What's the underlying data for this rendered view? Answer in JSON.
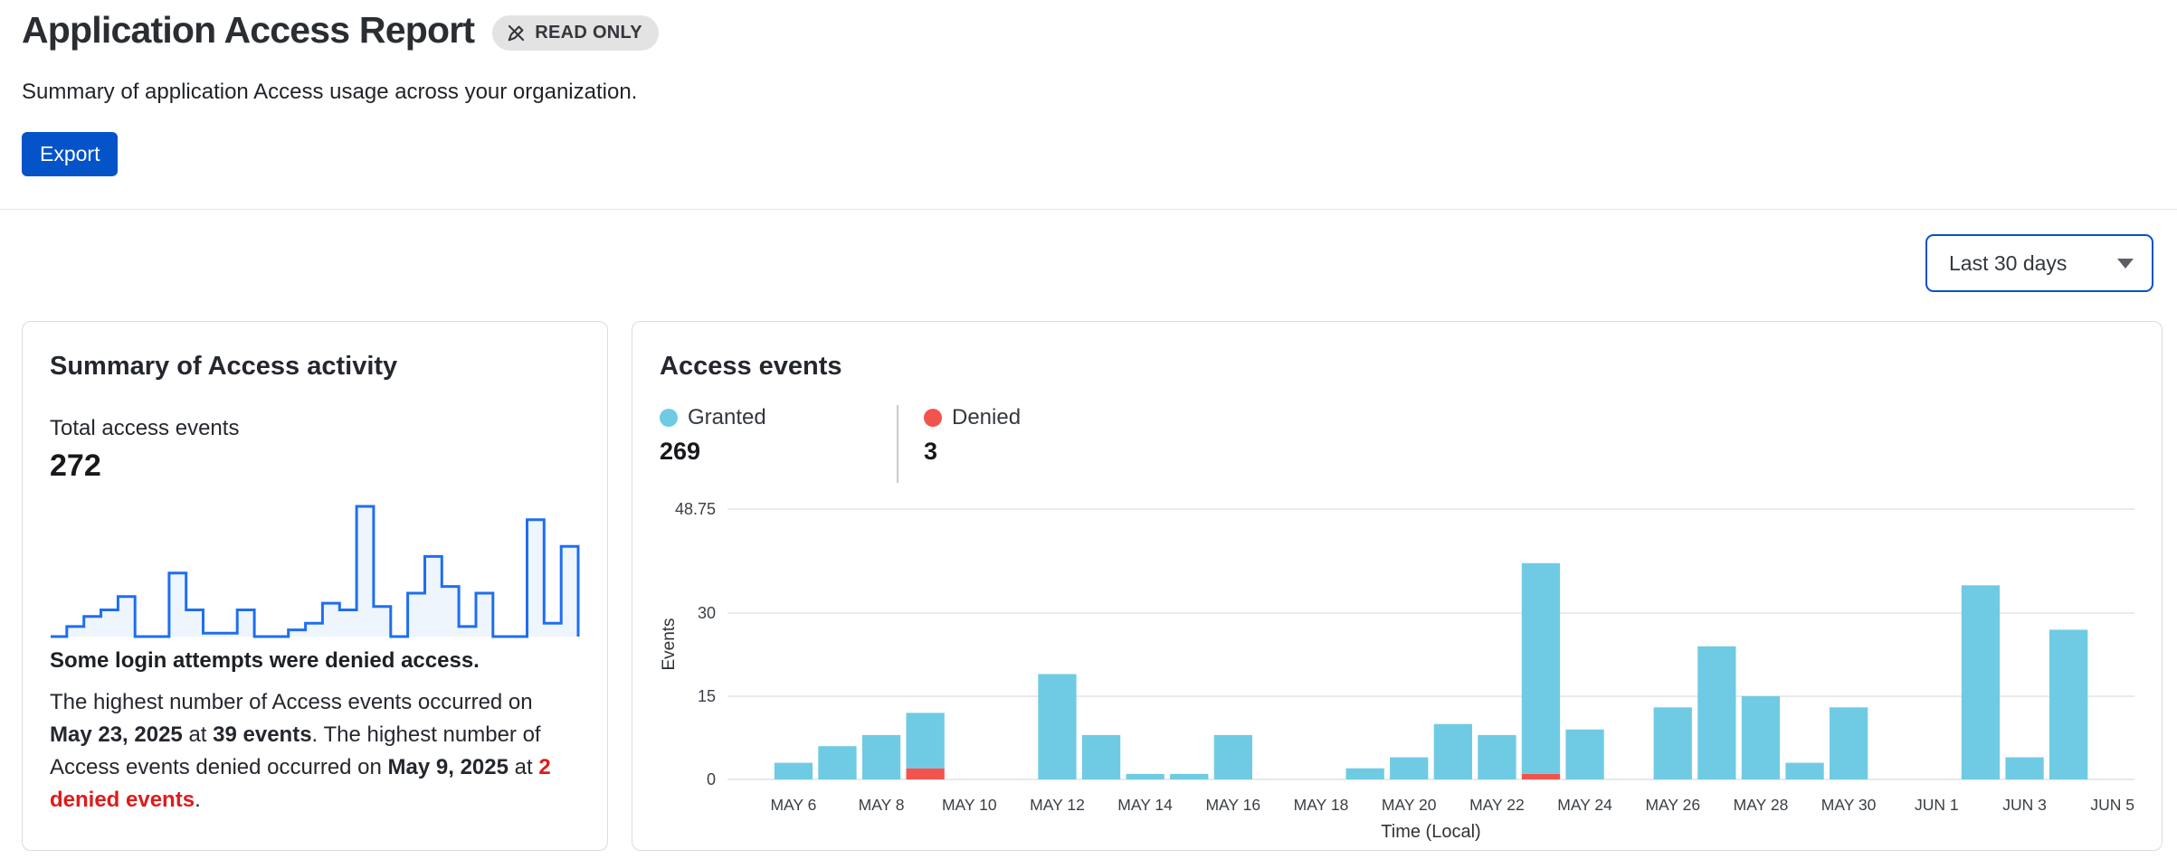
{
  "page": {
    "title": "Application Access Report",
    "read_only_badge": "READ ONLY",
    "subtitle": "Summary of application Access usage across your organization.",
    "export_label": "Export",
    "time_range": "Last 30 days"
  },
  "summary_card": {
    "title": "Summary of Access activity",
    "total_label": "Total access events",
    "total_value": "272",
    "alert_text": "Some login attempts were denied access.",
    "detail": {
      "t1": "The highest number of Access events occurred on ",
      "b1": "May 23, 2025",
      "t2": " at ",
      "b2": "39 events",
      "t3": ". The highest number of Access events denied occurred on ",
      "b3": "May 9, 2025",
      "t4": " at ",
      "red": "2 denied events",
      "t5": "."
    }
  },
  "events_card": {
    "title": "Access events",
    "legend": [
      {
        "label": "Granted",
        "value": "269",
        "color": "#6FCBE3"
      },
      {
        "label": "Denied",
        "value": "3",
        "color": "#F2544D"
      }
    ]
  },
  "chart_data": {
    "type": "bar",
    "stacked": true,
    "title": "Access events",
    "xlabel": "Time (Local)",
    "ylabel": "Events",
    "ylim": [
      0,
      48.75
    ],
    "yticks": [
      0,
      15,
      30,
      48.75
    ],
    "grid": true,
    "legend_position": "top",
    "categories": [
      "May 5",
      "May 6",
      "May 7",
      "May 8",
      "May 9",
      "May 10",
      "May 11",
      "May 12",
      "May 13",
      "May 14",
      "May 15",
      "May 16",
      "May 17",
      "May 18",
      "May 19",
      "May 20",
      "May 21",
      "May 22",
      "May 23",
      "May 24",
      "May 25",
      "May 26",
      "May 27",
      "May 28",
      "May 29",
      "May 30",
      "May 31",
      "Jun 1",
      "Jun 2",
      "Jun 3",
      "Jun 4",
      "Jun 5"
    ],
    "x_tick_positions": [
      1,
      3,
      5,
      7,
      9,
      11,
      13,
      15,
      17,
      19,
      21,
      23,
      25,
      27,
      29,
      31
    ],
    "x_tick_labels": [
      "MAY 6",
      "MAY 8",
      "MAY 10",
      "MAY 12",
      "MAY 14",
      "MAY 16",
      "MAY 18",
      "MAY 20",
      "MAY 22",
      "MAY 24",
      "MAY 26",
      "MAY 28",
      "MAY 30",
      "JUN 1",
      "JUN 3",
      "JUN 5"
    ],
    "series": [
      {
        "name": "Granted",
        "color": "#6FCBE3",
        "values": [
          0,
          3,
          6,
          8,
          10,
          0,
          0,
          19,
          8,
          1,
          1,
          8,
          0,
          0,
          2,
          4,
          10,
          8,
          38,
          9,
          0,
          13,
          24,
          15,
          3,
          13,
          0,
          0,
          35,
          4,
          27,
          0
        ]
      },
      {
        "name": "Denied",
        "color": "#F2544D",
        "values": [
          0,
          0,
          0,
          0,
          2,
          0,
          0,
          0,
          0,
          0,
          0,
          0,
          0,
          0,
          0,
          0,
          0,
          0,
          1,
          0,
          0,
          0,
          0,
          0,
          0,
          0,
          0,
          0,
          0,
          0,
          0,
          0
        ]
      }
    ],
    "sparkline": {
      "stroke": "#1F6EF0",
      "fill": "#EEF5FD",
      "max": 39
    },
    "colors": {
      "granted": "#6FCBE3",
      "denied": "#F2544D",
      "gridline": "#E2E3E5",
      "axis_text": "#3A3F45"
    }
  }
}
